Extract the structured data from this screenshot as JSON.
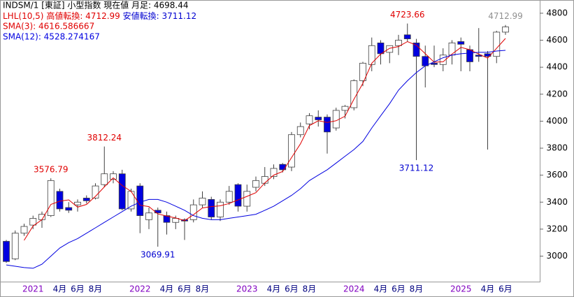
{
  "chart_data": {
    "type": "candlestick",
    "header": "INDSM/1 [東証] 小型指数  現在値 月足: 4698.44",
    "lhl": {
      "label": "LHL(10,5)",
      "high_label": "高値転換: 4712.99",
      "low_label": "安値転換: 3711.12",
      "high_color": "#e00000",
      "low_color": "#0000d0"
    },
    "categories": [
      null,
      null,
      null,
      "2021",
      null,
      null,
      "4月",
      null,
      "6月",
      null,
      "8月",
      null,
      null,
      null,
      null,
      "2022",
      null,
      null,
      "4月",
      null,
      "6月",
      null,
      "8月",
      null,
      null,
      null,
      null,
      "2023",
      null,
      null,
      "4月",
      null,
      "6月",
      null,
      "8月",
      null,
      null,
      null,
      null,
      "2024",
      null,
      null,
      "4月",
      null,
      "6月",
      null,
      "8月",
      null,
      null,
      null,
      null,
      "2025",
      null,
      null,
      "4月",
      null,
      "6月"
    ],
    "year_labels": [
      "2021",
      "2022",
      "2023",
      "2024",
      "2025"
    ],
    "year_color": "#8000c0",
    "month_color": "#000080",
    "open": [
      3110,
      2980,
      3170,
      3230,
      3270,
      3300,
      3480,
      3360,
      3380,
      3430,
      3430,
      3530,
      3570,
      3610,
      3350,
      3520,
      3270,
      3340,
      3300,
      3250,
      3270,
      3270,
      3380,
      3420,
      3290,
      3400,
      3530,
      3370,
      3510,
      3540,
      3590,
      3680,
      3660,
      3900,
      3980,
      4030,
      4030,
      3950,
      4080,
      4100,
      4300,
      4420,
      4580,
      4510,
      4560,
      4640,
      4580,
      4480,
      4430,
      4420,
      4490,
      4590,
      4530,
      4490,
      4500,
      4480,
      4660
    ],
    "high": [
      3120,
      3190,
      3240,
      3300,
      3330,
      3576.79,
      3500,
      3400,
      3420,
      3450,
      3540,
      3812.24,
      3630,
      3640,
      3500,
      3540,
      3360,
      3360,
      3330,
      3300,
      3280,
      3420,
      3480,
      3440,
      3420,
      3520,
      3540,
      3530,
      3590,
      3660,
      3680,
      3690,
      3920,
      3990,
      4060,
      4080,
      4050,
      4100,
      4120,
      4310,
      4440,
      4620,
      4600,
      4560,
      4640,
      4723.66,
      4610,
      4560,
      4560,
      4540,
      4600,
      4620,
      4560,
      4690,
      4520,
      4670,
      4712.99
    ],
    "low": [
      2950,
      2970,
      3150,
      3200,
      3210,
      3290,
      3330,
      3320,
      3330,
      3390,
      3420,
      3510,
      3540,
      3340,
      3330,
      3170,
      3200,
      3069.91,
      3160,
      3200,
      3120,
      3250,
      3360,
      3270,
      3260,
      3380,
      3330,
      3330,
      3480,
      3520,
      3570,
      3620,
      3630,
      3880,
      3940,
      3960,
      3760,
      3930,
      4020,
      4080,
      4260,
      4370,
      4420,
      4430,
      4490,
      4590,
      3711.12,
      4250,
      4400,
      4370,
      4420,
      4370,
      4370,
      4440,
      3790,
      4430,
      4640
    ],
    "close": [
      2960,
      3170,
      3220,
      3280,
      3310,
      3560,
      3350,
      3340,
      3400,
      3410,
      3520,
      3610,
      3610,
      3350,
      3480,
      3300,
      3320,
      3320,
      3250,
      3280,
      3260,
      3380,
      3430,
      3290,
      3400,
      3480,
      3370,
      3480,
      3560,
      3590,
      3650,
      3640,
      3900,
      3960,
      4040,
      4010,
      3920,
      4080,
      4110,
      4300,
      4430,
      4560,
      4500,
      4560,
      4600,
      4610,
      4480,
      4410,
      4420,
      4490,
      4580,
      4570,
      4440,
      4480,
      4480,
      4660,
      4698.44
    ],
    "up_color": "#ffffff",
    "down_color": "#0000e0",
    "edge_color": "#404040",
    "series": [
      {
        "name": "SMA(3): 4616.586667",
        "color": "#e00000",
        "values": [
          null,
          null,
          3117,
          3223,
          3270,
          3383,
          3407,
          3417,
          3363,
          3383,
          3443,
          3513,
          3580,
          3523,
          3480,
          3377,
          3367,
          3313,
          3297,
          3283,
          3263,
          3307,
          3357,
          3367,
          3373,
          3390,
          3417,
          3443,
          3470,
          3543,
          3600,
          3627,
          3730,
          3833,
          3967,
          4003,
          3990,
          4003,
          4037,
          4163,
          4280,
          4430,
          4497,
          4540,
          4553,
          4590,
          4563,
          4500,
          4437,
          4440,
          4497,
          4547,
          4530,
          4497,
          4467,
          4540,
          4613
        ]
      },
      {
        "name": "SMA(12): 4528.274167",
        "color": "#0000e0",
        "values": [
          2935,
          2925,
          2915,
          2910,
          2940,
          3000,
          3060,
          3100,
          3130,
          3170,
          3210,
          3250,
          3290,
          3330,
          3370,
          3400,
          3420,
          3420,
          3400,
          3370,
          3340,
          3300,
          3280,
          3270,
          3270,
          3280,
          3290,
          3300,
          3310,
          3340,
          3370,
          3410,
          3450,
          3500,
          3560,
          3600,
          3640,
          3690,
          3740,
          3790,
          3850,
          3950,
          4040,
          4130,
          4230,
          4300,
          4360,
          4410,
          4440,
          4470,
          4490,
          4500,
          4505,
          4510,
          4510,
          4520,
          4525
        ]
      }
    ],
    "annotations": [
      {
        "label": "3576.79",
        "value": 3576.79,
        "kind": "high",
        "color": "#e00000"
      },
      {
        "label": "3812.24",
        "value": 3812.24,
        "kind": "high",
        "color": "#e00000"
      },
      {
        "label": "3069.91",
        "value": 3069.91,
        "kind": "low",
        "color": "#0000d0"
      },
      {
        "label": "4723.66",
        "value": 4723.66,
        "kind": "high",
        "color": "#e00000"
      },
      {
        "label": "3711.12",
        "value": 3711.12,
        "kind": "low",
        "color": "#0000d0"
      },
      {
        "label": "4712.99",
        "value": 4712.99,
        "kind": "high",
        "color": "#909090"
      }
    ],
    "ylim": [
      2811,
      4898
    ],
    "yticks": [
      3000,
      3200,
      3400,
      3600,
      3800,
      4000,
      4200,
      4400,
      4600,
      4800
    ]
  }
}
